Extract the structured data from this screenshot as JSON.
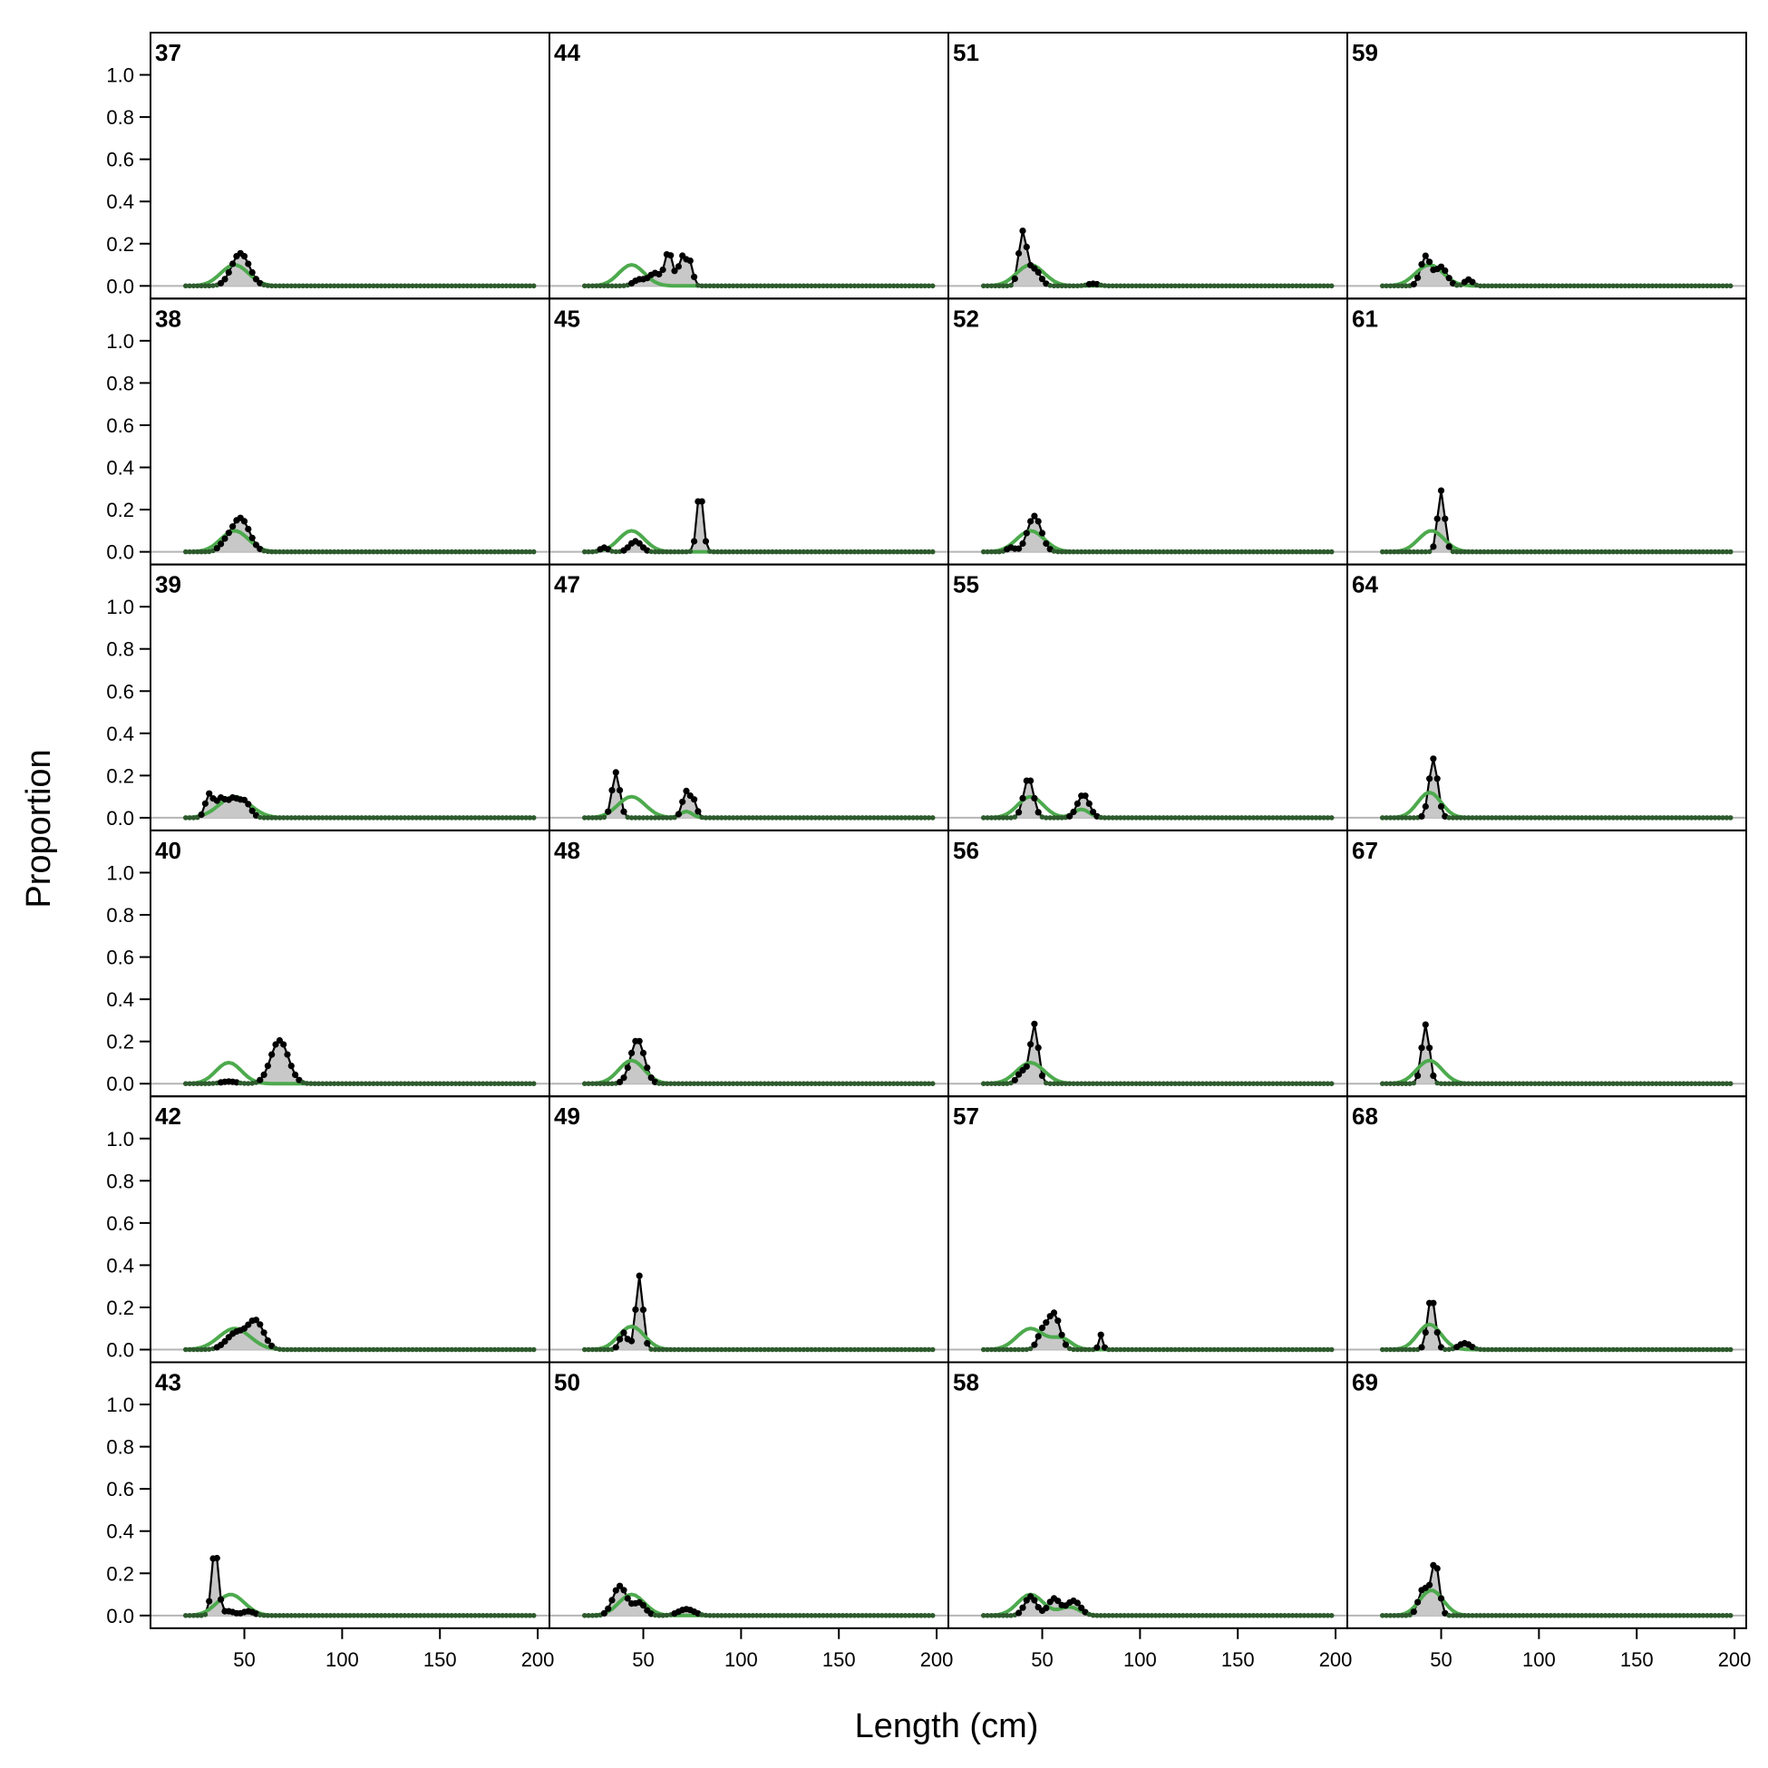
{
  "chart_data": {
    "type": "line",
    "title": "",
    "xlabel": "Length (cm)",
    "ylabel": "Proportion",
    "xlim": [
      2,
      206
    ],
    "ylim": [
      -0.06,
      1.2
    ],
    "x_ticks": [
      50,
      100,
      150,
      200
    ],
    "y_ticks": [
      0.0,
      0.2,
      0.4,
      0.6,
      0.8,
      1.0
    ],
    "x_tick_labels": [
      "50",
      "100",
      "150",
      "200"
    ],
    "y_tick_labels": [
      "0.0",
      "0.2",
      "0.4",
      "0.6",
      "0.8",
      "1.0"
    ],
    "grid": false,
    "bin_range": [
      20,
      198
    ],
    "bin_width": 2,
    "series_styles": {
      "observed": {
        "line": "#000000",
        "fill": "#c8c8c8"
      },
      "expected": {
        "line": "#4daa4d"
      }
    },
    "layout": {
      "columns": 4,
      "rows": 6
    },
    "panels": [
      {
        "label": "37",
        "observed_peaks": [
          [
            48,
            0.155,
            4.5
          ]
        ],
        "expected_peaks": [
          [
            45,
            0.1,
            7
          ]
        ]
      },
      {
        "label": "38",
        "observed_peaks": [
          [
            48,
            0.16,
            4.5
          ],
          [
            40,
            0.03,
            3
          ]
        ],
        "expected_peaks": [
          [
            45,
            0.1,
            7
          ]
        ]
      },
      {
        "label": "39",
        "observed_peaks": [
          [
            32,
            0.11,
            2
          ],
          [
            38,
            0.09,
            2.5
          ],
          [
            44,
            0.08,
            2.5
          ],
          [
            50,
            0.08,
            3
          ]
        ],
        "expected_peaks": [
          [
            45,
            0.1,
            8
          ]
        ]
      },
      {
        "label": "40",
        "observed_peaks": [
          [
            68,
            0.205,
            4.5
          ],
          [
            42,
            0.01,
            4
          ]
        ],
        "expected_peaks": [
          [
            42,
            0.1,
            6.5
          ]
        ]
      },
      {
        "label": "42",
        "observed_peaks": [
          [
            56,
            0.13,
            4
          ],
          [
            46,
            0.08,
            5
          ]
        ],
        "expected_peaks": [
          [
            45,
            0.1,
            8
          ]
        ]
      },
      {
        "label": "43",
        "observed_peaks": [
          [
            35,
            0.32,
            1.7
          ],
          [
            42,
            0.02,
            3
          ],
          [
            52,
            0.02,
            3
          ]
        ],
        "expected_peaks": [
          [
            43,
            0.1,
            7
          ]
        ]
      },
      {
        "label": "44",
        "observed_peaks": [
          [
            63,
            0.16,
            2
          ],
          [
            70,
            0.14,
            2
          ],
          [
            74,
            0.1,
            1.5
          ],
          [
            56,
            0.06,
            3
          ],
          [
            48,
            0.03,
            3
          ]
        ],
        "expected_peaks": [
          [
            44,
            0.1,
            6.5
          ]
        ]
      },
      {
        "label": "45",
        "observed_peaks": [
          [
            79,
            0.29,
            1.6
          ],
          [
            46,
            0.05,
            3
          ],
          [
            30,
            0.02,
            2
          ]
        ],
        "expected_peaks": [
          [
            44,
            0.1,
            6.5
          ]
        ]
      },
      {
        "label": "47",
        "observed_peaks": [
          [
            36,
            0.215,
            2
          ],
          [
            72,
            0.125,
            2
          ],
          [
            76,
            0.07,
            1.5
          ]
        ],
        "expected_peaks": [
          [
            44,
            0.1,
            7
          ],
          [
            72,
            0.03,
            3
          ]
        ]
      },
      {
        "label": "48",
        "observed_peaks": [
          [
            47,
            0.21,
            3.5
          ]
        ],
        "expected_peaks": [
          [
            44,
            0.11,
            6.5
          ]
        ]
      },
      {
        "label": "49",
        "observed_peaks": [
          [
            48,
            0.35,
            1.8
          ],
          [
            40,
            0.08,
            2
          ]
        ],
        "expected_peaks": [
          [
            44,
            0.11,
            6.5
          ]
        ]
      },
      {
        "label": "50",
        "observed_peaks": [
          [
            38,
            0.14,
            3.5
          ],
          [
            48,
            0.06,
            3
          ],
          [
            72,
            0.03,
            4
          ]
        ],
        "expected_peaks": [
          [
            44,
            0.1,
            6.5
          ]
        ]
      },
      {
        "label": "51",
        "observed_peaks": [
          [
            40,
            0.25,
            2
          ],
          [
            46,
            0.08,
            3
          ],
          [
            76,
            0.01,
            3
          ]
        ],
        "expected_peaks": [
          [
            44,
            0.1,
            7
          ]
        ]
      },
      {
        "label": "52",
        "observed_peaks": [
          [
            46,
            0.17,
            3.5
          ],
          [
            34,
            0.02,
            2
          ]
        ],
        "expected_peaks": [
          [
            44,
            0.1,
            7
          ]
        ]
      },
      {
        "label": "55",
        "observed_peaks": [
          [
            43,
            0.19,
            2.5
          ],
          [
            71,
            0.11,
            3
          ]
        ],
        "expected_peaks": [
          [
            44,
            0.1,
            6.5
          ],
          [
            70,
            0.04,
            4
          ]
        ]
      },
      {
        "label": "56",
        "observed_peaks": [
          [
            46,
            0.28,
            2
          ],
          [
            40,
            0.06,
            2.5
          ]
        ],
        "expected_peaks": [
          [
            44,
            0.1,
            7
          ]
        ]
      },
      {
        "label": "57",
        "observed_peaks": [
          [
            56,
            0.17,
            3
          ],
          [
            50,
            0.08,
            2.5
          ],
          [
            80,
            0.07,
            1
          ]
        ],
        "expected_peaks": [
          [
            44,
            0.1,
            7
          ],
          [
            60,
            0.05,
            5
          ]
        ]
      },
      {
        "label": "58",
        "observed_peaks": [
          [
            44,
            0.09,
            3
          ],
          [
            56,
            0.08,
            3
          ],
          [
            66,
            0.07,
            3.5
          ]
        ],
        "expected_peaks": [
          [
            44,
            0.1,
            6.5
          ],
          [
            64,
            0.04,
            5
          ]
        ]
      },
      {
        "label": "59",
        "observed_peaks": [
          [
            42,
            0.14,
            2.5
          ],
          [
            50,
            0.09,
            3
          ],
          [
            64,
            0.03,
            2
          ]
        ],
        "expected_peaks": [
          [
            44,
            0.1,
            7
          ]
        ]
      },
      {
        "label": "61",
        "observed_peaks": [
          [
            50,
            0.29,
            1.8
          ]
        ],
        "expected_peaks": [
          [
            45,
            0.1,
            6.5
          ]
        ]
      },
      {
        "label": "64",
        "observed_peaks": [
          [
            46,
            0.28,
            2.2
          ]
        ],
        "expected_peaks": [
          [
            44,
            0.12,
            6
          ]
        ]
      },
      {
        "label": "67",
        "observed_peaks": [
          [
            42,
            0.28,
            2
          ]
        ],
        "expected_peaks": [
          [
            44,
            0.11,
            6.5
          ]
        ]
      },
      {
        "label": "68",
        "observed_peaks": [
          [
            45,
            0.25,
            2
          ],
          [
            62,
            0.03,
            3
          ]
        ],
        "expected_peaks": [
          [
            44,
            0.12,
            6
          ]
        ]
      },
      {
        "label": "69",
        "observed_peaks": [
          [
            47,
            0.25,
            2
          ],
          [
            41,
            0.13,
            2.5
          ]
        ],
        "expected_peaks": [
          [
            45,
            0.12,
            6
          ]
        ]
      }
    ]
  }
}
